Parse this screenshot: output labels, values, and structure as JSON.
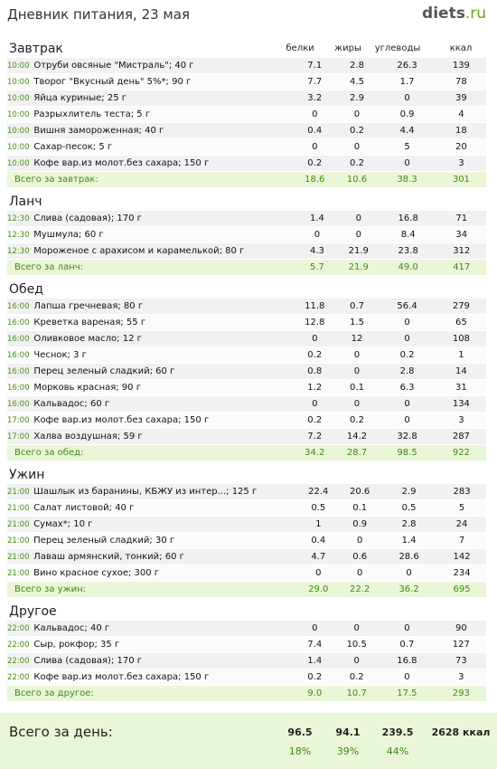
{
  "title": "Дневник питания, 23 мая",
  "brand": {
    "name": "diets",
    "tld": ".ru"
  },
  "columns": [
    "белки",
    "жиры",
    "углеводы",
    "ккал"
  ],
  "sections": [
    {
      "title": "Завтрак",
      "show_columns": true,
      "items": [
        {
          "time": "10:00",
          "name": "Отруби овсяные \"Мистраль\"; 40 г",
          "protein": "7.1",
          "fat": "2.8",
          "carbs": "26.3",
          "kcal": "139"
        },
        {
          "time": "10:00",
          "name": "Творог \"Вкусный день\" 5%*; 90 г",
          "protein": "7.7",
          "fat": "4.5",
          "carbs": "1.7",
          "kcal": "78"
        },
        {
          "time": "10:00",
          "name": "Яйца куриные; 25 г",
          "protein": "3.2",
          "fat": "2.9",
          "carbs": "0",
          "kcal": "39"
        },
        {
          "time": "10:00",
          "name": "Разрыхлитель теста; 5 г",
          "protein": "0",
          "fat": "0",
          "carbs": "0.9",
          "kcal": "4"
        },
        {
          "time": "10:00",
          "name": "Вишня замороженная; 40 г",
          "protein": "0.4",
          "fat": "0.2",
          "carbs": "4.4",
          "kcal": "18"
        },
        {
          "time": "10:00",
          "name": "Сахар-песок; 5 г",
          "protein": "0",
          "fat": "0",
          "carbs": "5",
          "kcal": "20"
        },
        {
          "time": "10:00",
          "name": "Кофе вар.из молот.без сахара; 150 г",
          "protein": "0.2",
          "fat": "0.2",
          "carbs": "0",
          "kcal": "3"
        }
      ],
      "total": {
        "label": "Всего за завтрак:",
        "protein": "18.6",
        "fat": "10.6",
        "carbs": "38.3",
        "kcal": "301"
      }
    },
    {
      "title": "Ланч",
      "show_columns": false,
      "items": [
        {
          "time": "12:30",
          "name": "Слива (садовая); 170 г",
          "protein": "1.4",
          "fat": "0",
          "carbs": "16.8",
          "kcal": "71"
        },
        {
          "time": "12:30",
          "name": "Мушмула; 60 г",
          "protein": "0",
          "fat": "0",
          "carbs": "8.4",
          "kcal": "34"
        },
        {
          "time": "12:30",
          "name": "Мороженое с арахисом и карамелькой; 80 г",
          "protein": "4.3",
          "fat": "21.9",
          "carbs": "23.8",
          "kcal": "312"
        }
      ],
      "total": {
        "label": "Всего за ланч:",
        "protein": "5.7",
        "fat": "21.9",
        "carbs": "49.0",
        "kcal": "417"
      }
    },
    {
      "title": "Обед",
      "show_columns": false,
      "items": [
        {
          "time": "16:00",
          "name": "Лапша гречневая; 80 г",
          "protein": "11.8",
          "fat": "0.7",
          "carbs": "56.4",
          "kcal": "279"
        },
        {
          "time": "16:00",
          "name": "Креветка вареная; 55 г",
          "protein": "12.8",
          "fat": "1.5",
          "carbs": "0",
          "kcal": "65"
        },
        {
          "time": "16:00",
          "name": "Оливковое масло; 12 г",
          "protein": "0",
          "fat": "12",
          "carbs": "0",
          "kcal": "108"
        },
        {
          "time": "16:00",
          "name": "Чеснок; 3 г",
          "protein": "0.2",
          "fat": "0",
          "carbs": "0.2",
          "kcal": "1"
        },
        {
          "time": "16:00",
          "name": "Перец зеленый сладкий; 60 г",
          "protein": "0.8",
          "fat": "0",
          "carbs": "2.8",
          "kcal": "14"
        },
        {
          "time": "16:00",
          "name": "Морковь красная; 90 г",
          "protein": "1.2",
          "fat": "0.1",
          "carbs": "6.3",
          "kcal": "31"
        },
        {
          "time": "16:00",
          "name": "Кальвадос; 60 г",
          "protein": "0",
          "fat": "0",
          "carbs": "0",
          "kcal": "134"
        },
        {
          "time": "17:00",
          "name": "Кофе вар.из молот.без сахара; 150 г",
          "protein": "0.2",
          "fat": "0.2",
          "carbs": "0",
          "kcal": "3"
        },
        {
          "time": "17:00",
          "name": "Халва воздушная; 59 г",
          "protein": "7.2",
          "fat": "14.2",
          "carbs": "32.8",
          "kcal": "287"
        }
      ],
      "total": {
        "label": "Всего за обед:",
        "protein": "34.2",
        "fat": "28.7",
        "carbs": "98.5",
        "kcal": "922"
      }
    },
    {
      "title": "Ужин",
      "show_columns": false,
      "items": [
        {
          "time": "21:00",
          "name": "Шашлык из баранины, КБЖУ из интер...; 125 г",
          "protein": "22.4",
          "fat": "20.6",
          "carbs": "2.9",
          "kcal": "283"
        },
        {
          "time": "21:00",
          "name": "Салат листовой; 40 г",
          "protein": "0.5",
          "fat": "0.1",
          "carbs": "0.5",
          "kcal": "5"
        },
        {
          "time": "21:00",
          "name": "Сумах*; 10 г",
          "protein": "1",
          "fat": "0.9",
          "carbs": "2.8",
          "kcal": "24"
        },
        {
          "time": "21:00",
          "name": "Перец зеленый сладкий; 30 г",
          "protein": "0.4",
          "fat": "0",
          "carbs": "1.4",
          "kcal": "7"
        },
        {
          "time": "21:00",
          "name": "Лаваш армянский, тонкий; 60 г",
          "protein": "4.7",
          "fat": "0.6",
          "carbs": "28.6",
          "kcal": "142"
        },
        {
          "time": "21:00",
          "name": "Вино красное сухое; 300 г",
          "protein": "0",
          "fat": "0",
          "carbs": "0",
          "kcal": "234"
        }
      ],
      "total": {
        "label": "Всего за ужин:",
        "protein": "29.0",
        "fat": "22.2",
        "carbs": "36.2",
        "kcal": "695"
      }
    },
    {
      "title": "Другое",
      "show_columns": false,
      "items": [
        {
          "time": "22:00",
          "name": "Кальвадос; 40 г",
          "protein": "0",
          "fat": "0",
          "carbs": "0",
          "kcal": "90"
        },
        {
          "time": "22:00",
          "name": "Сыр, рокфор; 35 г",
          "protein": "7.4",
          "fat": "10.5",
          "carbs": "0.7",
          "kcal": "127"
        },
        {
          "time": "22:00",
          "name": "Слива (садовая); 170 г",
          "protein": "1.4",
          "fat": "0",
          "carbs": "16.8",
          "kcal": "73"
        },
        {
          "time": "22:00",
          "name": "Кофе вар.из молот.без сахара; 150 г",
          "protein": "0.2",
          "fat": "0.2",
          "carbs": "0",
          "kcal": "3"
        }
      ],
      "total": {
        "label": "Всего за другое:",
        "protein": "9.0",
        "fat": "10.7",
        "carbs": "17.5",
        "kcal": "293"
      }
    }
  ],
  "day_total": {
    "label": "Всего за день:",
    "protein": "96.5",
    "fat": "94.1",
    "carbs": "239.5",
    "kcal": "2628 ккал",
    "protein_pct": "18%",
    "fat_pct": "39%",
    "carbs_pct": "44%"
  }
}
